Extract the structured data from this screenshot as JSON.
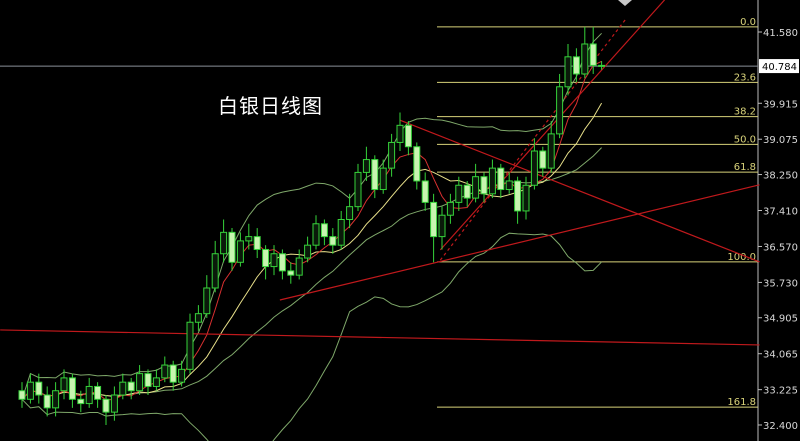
{
  "title": "白银日线图",
  "chart_data": {
    "type": "candlestick",
    "title": "白银日线图",
    "ylim": [
      32.1,
      42.33
    ],
    "y_ticks": [
      "41.580",
      "39.915",
      "39.075",
      "38.250",
      "37.410",
      "36.570",
      "35.730",
      "34.905",
      "34.065",
      "33.225",
      "32.400"
    ],
    "current_price": "40.784",
    "colors": {
      "up": "#36d33a",
      "down": "#c8f5b0",
      "trendline": "#c0191c",
      "fib": "#d8d27a",
      "ma5": "#d83030",
      "ma10": "#e8e08a",
      "bollinger": "#7fa86a",
      "axis": "#bdbdbd"
    },
    "candles_ohlc": [
      [
        33.2,
        33.4,
        32.8,
        33.0
      ],
      [
        33.0,
        33.6,
        32.9,
        33.4
      ],
      [
        33.4,
        33.6,
        32.9,
        33.1
      ],
      [
        33.1,
        33.3,
        32.6,
        32.8
      ],
      [
        32.8,
        33.4,
        32.6,
        33.2
      ],
      [
        33.2,
        33.7,
        33.0,
        33.5
      ],
      [
        33.5,
        33.6,
        32.8,
        33.0
      ],
      [
        33.0,
        33.2,
        32.7,
        32.9
      ],
      [
        32.9,
        33.5,
        32.8,
        33.3
      ],
      [
        33.3,
        33.4,
        32.8,
        33.0
      ],
      [
        33.0,
        33.1,
        32.4,
        32.7
      ],
      [
        32.7,
        33.3,
        32.5,
        33.1
      ],
      [
        33.1,
        33.6,
        33.0,
        33.4
      ],
      [
        33.4,
        33.5,
        33.0,
        33.2
      ],
      [
        33.2,
        33.8,
        33.1,
        33.6
      ],
      [
        33.6,
        33.7,
        33.1,
        33.3
      ],
      [
        33.3,
        33.7,
        33.2,
        33.5
      ],
      [
        33.5,
        34.0,
        33.4,
        33.8
      ],
      [
        33.8,
        33.9,
        33.2,
        33.4
      ],
      [
        33.4,
        33.9,
        33.3,
        33.7
      ],
      [
        33.7,
        35.0,
        33.6,
        34.8
      ],
      [
        34.8,
        35.2,
        34.6,
        35.0
      ],
      [
        35.0,
        35.9,
        34.9,
        35.6
      ],
      [
        35.6,
        36.7,
        35.5,
        36.4
      ],
      [
        36.4,
        37.2,
        36.2,
        36.9
      ],
      [
        36.9,
        37.0,
        36.0,
        36.2
      ],
      [
        36.2,
        36.9,
        36.1,
        36.7
      ],
      [
        36.7,
        37.1,
        36.5,
        36.8
      ],
      [
        36.8,
        37.0,
        36.3,
        36.5
      ],
      [
        36.5,
        36.6,
        35.8,
        36.1
      ],
      [
        36.1,
        36.6,
        35.9,
        36.4
      ],
      [
        36.4,
        36.5,
        35.8,
        36.0
      ],
      [
        36.0,
        36.2,
        35.7,
        35.9
      ],
      [
        35.9,
        36.5,
        35.8,
        36.3
      ],
      [
        36.3,
        36.8,
        36.2,
        36.6
      ],
      [
        36.6,
        37.3,
        36.5,
        37.1
      ],
      [
        37.1,
        37.2,
        36.6,
        36.8
      ],
      [
        36.8,
        37.0,
        36.4,
        36.6
      ],
      [
        36.6,
        37.4,
        36.5,
        37.2
      ],
      [
        37.2,
        37.8,
        37.0,
        37.5
      ],
      [
        37.5,
        38.5,
        37.4,
        38.3
      ],
      [
        38.3,
        38.9,
        38.1,
        38.6
      ],
      [
        38.6,
        38.7,
        37.7,
        37.9
      ],
      [
        37.9,
        38.6,
        37.8,
        38.4
      ],
      [
        38.4,
        39.2,
        38.2,
        39.0
      ],
      [
        39.0,
        39.7,
        38.8,
        39.4
      ],
      [
        39.4,
        39.5,
        38.7,
        38.9
      ],
      [
        38.9,
        39.0,
        37.9,
        38.1
      ],
      [
        38.1,
        38.3,
        37.4,
        37.6
      ],
      [
        37.6,
        37.8,
        36.2,
        36.8
      ],
      [
        36.8,
        37.5,
        36.5,
        37.3
      ],
      [
        37.3,
        37.8,
        37.1,
        37.6
      ],
      [
        37.6,
        38.2,
        37.4,
        38.0
      ],
      [
        38.0,
        38.1,
        37.5,
        37.7
      ],
      [
        37.7,
        38.5,
        37.6,
        38.2
      ],
      [
        38.2,
        38.3,
        37.6,
        37.8
      ],
      [
        37.8,
        38.6,
        37.7,
        38.4
      ],
      [
        38.4,
        38.5,
        37.7,
        37.9
      ],
      [
        37.9,
        38.3,
        37.8,
        38.1
      ],
      [
        38.1,
        38.2,
        37.1,
        37.4
      ],
      [
        37.4,
        38.2,
        37.2,
        38.0
      ],
      [
        38.0,
        39.1,
        37.9,
        38.8
      ],
      [
        38.8,
        38.9,
        38.2,
        38.4
      ],
      [
        38.4,
        39.5,
        38.3,
        39.2
      ],
      [
        39.2,
        40.6,
        39.1,
        40.3
      ],
      [
        40.3,
        41.3,
        40.1,
        41.0
      ],
      [
        41.0,
        41.2,
        40.4,
        40.6
      ],
      [
        40.6,
        41.7,
        40.5,
        41.3
      ],
      [
        41.3,
        41.7,
        40.6,
        40.8
      ],
      [
        40.8,
        40.9,
        40.7,
        40.78
      ]
    ],
    "fibonacci": {
      "high": 41.7,
      "low": 36.21,
      "levels": [
        {
          "label": "0.0",
          "value": 0
        },
        {
          "label": "23.6",
          "value": 23.6
        },
        {
          "label": "38.2",
          "value": 38.2
        },
        {
          "label": "50.0",
          "value": 50
        },
        {
          "label": "61.8",
          "value": 61.8
        },
        {
          "label": "100.0",
          "value": 100
        },
        {
          "label": "161.8",
          "value": 161.8
        }
      ]
    },
    "trendlines": [
      {
        "from": [
          -2.6,
          34.62
        ],
        "to": [
          87.8,
          34.27
        ],
        "style": "solid"
      },
      {
        "from": [
          30.7,
          35.32
        ],
        "to": [
          87.8,
          38.01
        ],
        "style": "solid"
      },
      {
        "from": [
          45.0,
          39.52
        ],
        "to": [
          87.8,
          36.21
        ],
        "style": "solid"
      },
      {
        "from": [
          49.8,
          36.49
        ],
        "to": [
          76.5,
          42.33
        ],
        "style": "solid"
      },
      {
        "from": [
          49.8,
          36.25
        ],
        "to": [
          71.8,
          41.86
        ],
        "style": "dotted"
      }
    ]
  }
}
